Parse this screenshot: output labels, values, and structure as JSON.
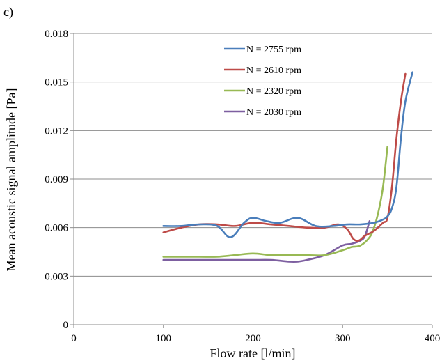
{
  "panel_label": "c)",
  "chart_data": {
    "type": "line",
    "title": "",
    "xlabel": "Flow rate [l/min]",
    "ylabel": "Mean acoustic signal amplitude [Pa]",
    "xlim": [
      0,
      400
    ],
    "ylim": [
      0,
      0.018
    ],
    "xticks": [
      0,
      100,
      200,
      300,
      400
    ],
    "xtick_labels": [
      "0",
      "100",
      "200",
      "300",
      "400"
    ],
    "yticks": [
      0,
      0.003,
      0.006,
      0.009,
      0.012,
      0.015,
      0.018
    ],
    "ytick_labels": [
      "0",
      "0.003",
      "0.006",
      "0.009",
      "0.012",
      "0.015",
      "0.018"
    ],
    "grid": "horizontal",
    "legend_position": "top-center",
    "series": [
      {
        "name": "N = 2755 rpm",
        "color": "#4a7ebb",
        "x": [
          100,
          120,
          140,
          160,
          175,
          190,
          200,
          215,
          230,
          250,
          270,
          290,
          305,
          320,
          335,
          345,
          350,
          355,
          360,
          365,
          370,
          378
        ],
        "y": [
          0.0061,
          0.0061,
          0.0062,
          0.0061,
          0.0054,
          0.0063,
          0.0066,
          0.0064,
          0.0063,
          0.0066,
          0.0061,
          0.0061,
          0.0062,
          0.0062,
          0.0063,
          0.0065,
          0.0067,
          0.0072,
          0.0085,
          0.0115,
          0.0138,
          0.0156
        ]
      },
      {
        "name": "N = 2610 rpm",
        "color": "#be4b48",
        "x": [
          100,
          120,
          140,
          160,
          180,
          200,
          220,
          240,
          260,
          280,
          295,
          305,
          312,
          318,
          325,
          335,
          345,
          350,
          355,
          360,
          365,
          370
        ],
        "y": [
          0.0057,
          0.006,
          0.0062,
          0.0062,
          0.0061,
          0.0063,
          0.0062,
          0.0061,
          0.006,
          0.006,
          0.0062,
          0.0059,
          0.0053,
          0.0052,
          0.0055,
          0.0058,
          0.0063,
          0.0066,
          0.0085,
          0.0115,
          0.0138,
          0.0155
        ]
      },
      {
        "name": "N = 2320 rpm",
        "color": "#98b954",
        "x": [
          100,
          120,
          140,
          160,
          180,
          200,
          220,
          240,
          260,
          280,
          300,
          310,
          320,
          330,
          335,
          340,
          345,
          350
        ],
        "y": [
          0.0042,
          0.0042,
          0.0042,
          0.0042,
          0.0043,
          0.0044,
          0.0043,
          0.0043,
          0.0043,
          0.0043,
          0.0046,
          0.0048,
          0.0049,
          0.0054,
          0.006,
          0.007,
          0.0085,
          0.011
        ]
      },
      {
        "name": "N = 2030 rpm",
        "color": "#7d5fa0",
        "x": [
          100,
          120,
          140,
          160,
          180,
          200,
          220,
          240,
          250,
          260,
          280,
          300,
          310,
          320,
          325,
          330
        ],
        "y": [
          0.004,
          0.004,
          0.004,
          0.004,
          0.004,
          0.004,
          0.004,
          0.0039,
          0.0039,
          0.004,
          0.0043,
          0.0049,
          0.005,
          0.0052,
          0.0055,
          0.0064
        ]
      }
    ]
  }
}
